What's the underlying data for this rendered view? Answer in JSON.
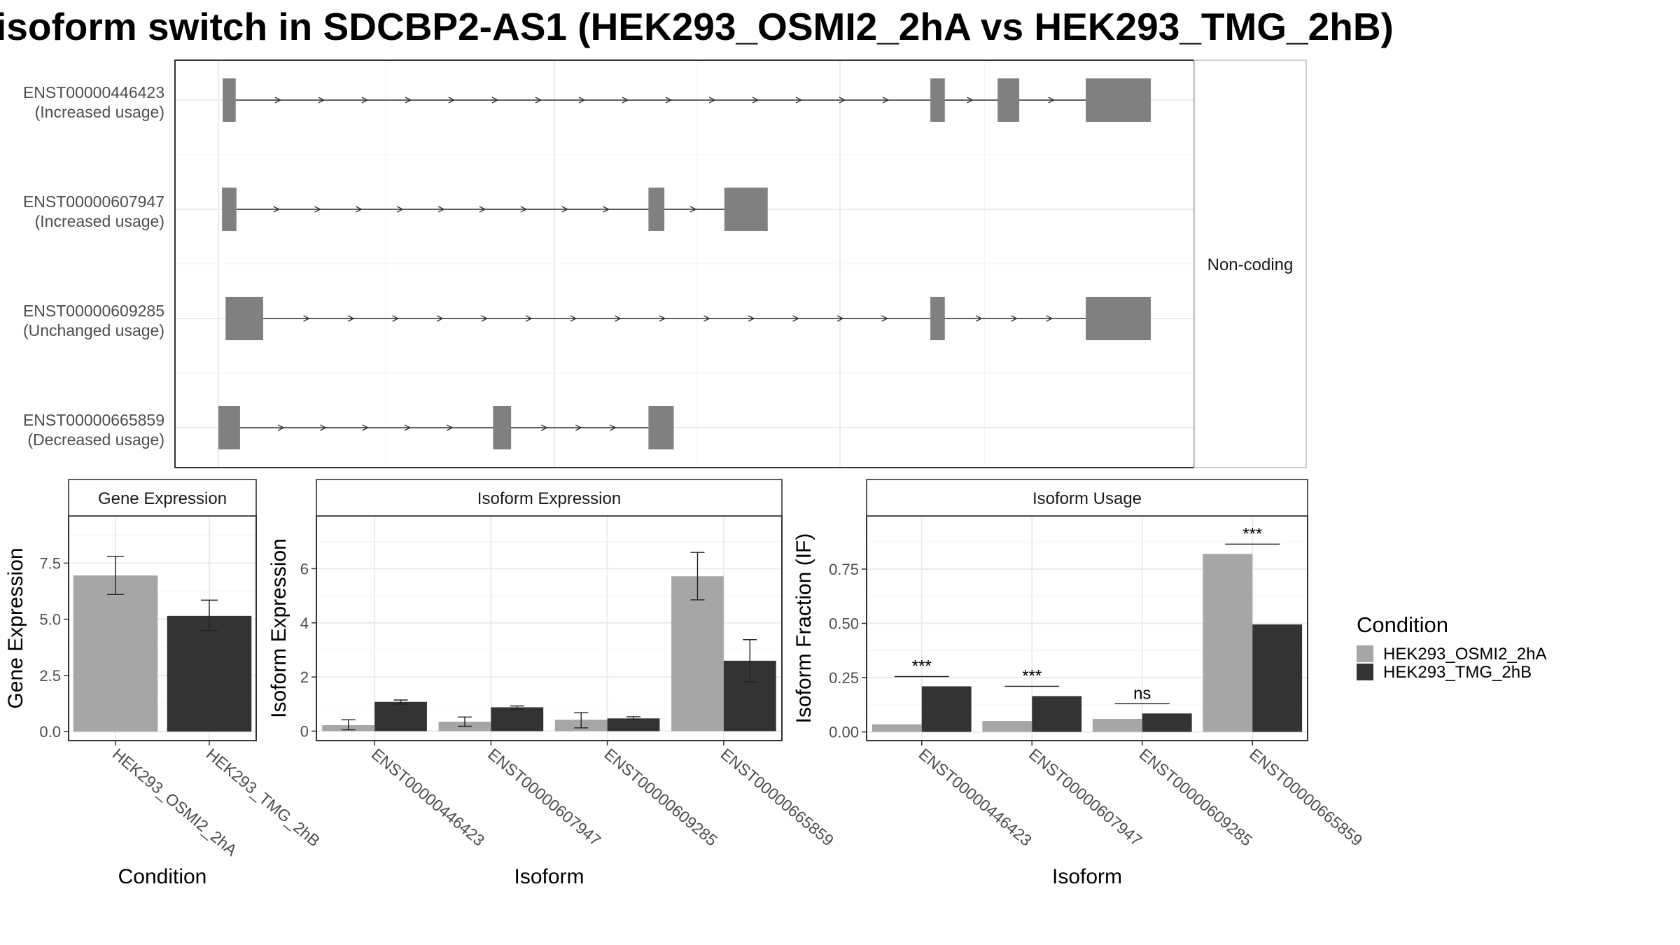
{
  "title": "isoform switch in SDCBP2-AS1 (HEK293_OSMI2_2hA vs HEK293_TMG_2hB)",
  "colors": {
    "exon": "#808080",
    "HEK293_OSMI2_2hA": "#a6a6a6",
    "HEK293_TMG_2hB": "#333333",
    "grid": "#ebebeb",
    "panel_border": "#333333",
    "strip_border": "#bdbdbd"
  },
  "chart_data": [
    {
      "type": "gene-structure",
      "facet_label": "Non-coding",
      "transcripts": [
        {
          "id": "ENST00000446423",
          "usage": "(Increased usage)",
          "exons": [
            [
              0.06,
              0.24
            ],
            [
              9.85,
              10.05
            ],
            [
              10.78,
              11.08
            ],
            [
              12.0,
              12.9
            ]
          ]
        },
        {
          "id": "ENST00000607947",
          "usage": "(Increased usage)",
          "exons": [
            [
              0.05,
              0.25
            ],
            [
              5.95,
              6.17
            ],
            [
              7.0,
              7.6
            ]
          ]
        },
        {
          "id": "ENST00000609285",
          "usage": "(Unchanged usage)",
          "exons": [
            [
              0.1,
              0.62
            ],
            [
              9.85,
              10.05
            ],
            [
              12.0,
              12.9
            ]
          ]
        },
        {
          "id": "ENST00000665859",
          "usage": "(Decreased usage)",
          "exons": [
            [
              0.0,
              0.3
            ],
            [
              3.8,
              4.05
            ],
            [
              5.95,
              6.3
            ]
          ]
        }
      ],
      "xlim": [
        -0.6,
        13.5
      ]
    },
    {
      "type": "bar",
      "panel": "Gene Expression",
      "xlabel": "Condition",
      "ylabel": "Gene Expression",
      "categories": [
        "HEK293_OSMI2_2hA",
        "HEK293_TMG_2hB"
      ],
      "values": [
        6.95,
        5.15
      ],
      "errors": [
        [
          6.1,
          7.8
        ],
        [
          4.5,
          5.85
        ]
      ],
      "yticks": [
        0.0,
        2.5,
        5.0,
        7.5
      ],
      "ytick_labels": [
        "0.0",
        "2.5",
        "5.0",
        "7.5"
      ],
      "ylim": [
        -0.4,
        9.6
      ]
    },
    {
      "type": "bar",
      "panel": "Isoform Expression",
      "xlabel": "Isoform",
      "ylabel": "Isoform Expression",
      "categories": [
        "ENST00000446423",
        "ENST00000607947",
        "ENST00000609285",
        "ENST00000665859"
      ],
      "series": [
        {
          "name": "HEK293_OSMI2_2hA",
          "values": [
            0.22,
            0.35,
            0.42,
            5.72
          ],
          "errors": [
            [
              0.05,
              0.42
            ],
            [
              0.18,
              0.52
            ],
            [
              0.12,
              0.68
            ],
            [
              4.85,
              6.6
            ]
          ]
        },
        {
          "name": "HEK293_TMG_2hB",
          "values": [
            1.08,
            0.88,
            0.47,
            2.6
          ],
          "errors": [
            [
              1.0,
              1.15
            ],
            [
              0.8,
              0.93
            ],
            [
              0.42,
              0.53
            ],
            [
              1.82,
              3.38
            ]
          ]
        }
      ],
      "yticks": [
        0,
        2,
        4,
        6
      ],
      "ytick_labels": [
        "0",
        "2",
        "4",
        "6"
      ],
      "ylim": [
        -0.35,
        7.95
      ]
    },
    {
      "type": "bar",
      "panel": "Isoform Usage",
      "xlabel": "Isoform",
      "ylabel": "Isoform Fraction (IF)",
      "categories": [
        "ENST00000446423",
        "ENST00000607947",
        "ENST00000609285",
        "ENST00000665859"
      ],
      "series": [
        {
          "name": "HEK293_OSMI2_2hA",
          "values": [
            0.035,
            0.05,
            0.06,
            0.82
          ]
        },
        {
          "name": "HEK293_TMG_2hB",
          "values": [
            0.21,
            0.165,
            0.085,
            0.495
          ]
        }
      ],
      "significance": [
        {
          "label": "***",
          "y": 0.255
        },
        {
          "label": "***",
          "y": 0.21
        },
        {
          "label": "ns",
          "y": 0.13
        },
        {
          "label": "***",
          "y": 0.865
        }
      ],
      "yticks": [
        0.0,
        0.25,
        0.5,
        0.75
      ],
      "ytick_labels": [
        "0.00",
        "0.25",
        "0.50",
        "0.75"
      ],
      "ylim": [
        -0.04,
        0.995
      ]
    }
  ],
  "legend": {
    "title": "Condition",
    "entries": [
      {
        "label": "HEK293_OSMI2_2hA",
        "color": "#a6a6a6"
      },
      {
        "label": "HEK293_TMG_2hB",
        "color": "#333333"
      }
    ]
  }
}
